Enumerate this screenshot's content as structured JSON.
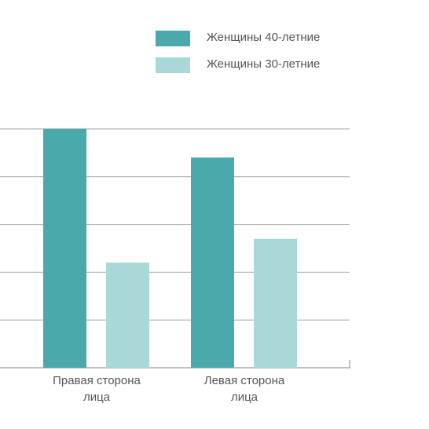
{
  "chart_data": {
    "type": "bar",
    "title": "",
    "xlabel": "",
    "ylabel": "",
    "categories": [
      "Правая сторона\nлица",
      "Левая сторона\nлица"
    ],
    "series": [
      {
        "name": "Женщины 40-летние",
        "color": "#4aa9aa",
        "values": [
          5,
          4.4
        ]
      },
      {
        "name": "Женщины 30-летние",
        "color": "#a8d9d8",
        "values": [
          2.2,
          2.7
        ]
      }
    ],
    "ylim": [
      0,
      5
    ],
    "grid": true,
    "legend": "top-right"
  }
}
